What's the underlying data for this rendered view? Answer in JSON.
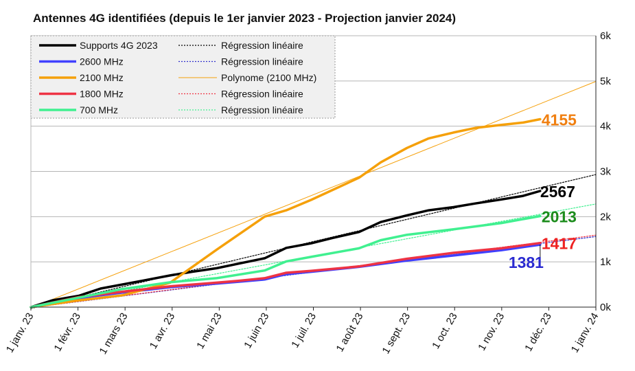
{
  "chart_data": {
    "type": "line",
    "title": "Antennes 4G identifiées (depuis le 1er janvier 2023 - Projection janvier 2024)",
    "x_tick_labels": [
      "1 janv. 23",
      "1 févr. 23",
      "1 mars 23",
      "1 avr. 23",
      "1 mai 23",
      "1 juin 23",
      "1 juil. 23",
      "1 août 23",
      "1 sept. 23",
      "1 oct. 23",
      "1 nov. 23",
      "1 déc. 23",
      "1 janv. 24"
    ],
    "y_tick_labels": [
      "0k",
      "1k",
      "2k",
      "3k",
      "4k",
      "5k",
      "6k"
    ],
    "xlim": [
      "2023-01-01",
      "2024-01-01"
    ],
    "ylim": [
      0,
      6000
    ],
    "y_axis_side": "right",
    "grid": "horizontal",
    "legend_position": "top-left",
    "series": [
      {
        "name": "Supports 4G 2023",
        "color": "#000000",
        "style": "solid",
        "x": [
          "2023-01-01",
          "2023-01-15",
          "2023-02-01",
          "2023-02-15",
          "2023-03-01",
          "2023-03-15",
          "2023-04-01",
          "2023-04-15",
          "2023-05-01",
          "2023-05-15",
          "2023-06-01",
          "2023-06-15",
          "2023-07-01",
          "2023-07-15",
          "2023-08-01",
          "2023-08-15",
          "2023-09-01",
          "2023-09-15",
          "2023-10-01",
          "2023-10-15",
          "2023-11-01",
          "2023-11-15",
          "2023-11-26"
        ],
        "values": [
          0,
          150,
          250,
          410,
          500,
          590,
          700,
          780,
          860,
          960,
          1080,
          1310,
          1410,
          1530,
          1660,
          1880,
          2030,
          2140,
          2210,
          2290,
          2380,
          2460,
          2567
        ],
        "end_label": "2567",
        "end_label_color": "#000000"
      },
      {
        "name": "2600 MHz",
        "color": "#4040ff",
        "style": "solid",
        "x": [
          "2023-01-01",
          "2023-02-01",
          "2023-03-01",
          "2023-04-01",
          "2023-05-01",
          "2023-05-15",
          "2023-06-01",
          "2023-06-15",
          "2023-07-01",
          "2023-08-01",
          "2023-09-01",
          "2023-10-01",
          "2023-11-01",
          "2023-11-26"
        ],
        "values": [
          0,
          200,
          320,
          440,
          520,
          560,
          610,
          730,
          780,
          890,
          1030,
          1140,
          1260,
          1381
        ],
        "end_label": "1381",
        "end_label_color": "#2a2ad0"
      },
      {
        "name": "2100 MHz",
        "color": "#f5a00a",
        "style": "solid",
        "x": [
          "2023-01-01",
          "2023-02-01",
          "2023-03-01",
          "2023-04-01",
          "2023-05-01",
          "2023-06-01",
          "2023-06-15",
          "2023-07-01",
          "2023-08-01",
          "2023-08-15",
          "2023-09-01",
          "2023-09-15",
          "2023-10-01",
          "2023-10-15",
          "2023-11-01",
          "2023-11-15",
          "2023-11-26"
        ],
        "values": [
          0,
          150,
          260,
          540,
          1270,
          2000,
          2140,
          2370,
          2860,
          3200,
          3520,
          3730,
          3860,
          3960,
          4030,
          4080,
          4155
        ],
        "end_label": "4155",
        "end_label_color": "#f07f10"
      },
      {
        "name": "1800 MHz",
        "color": "#ee3344",
        "style": "solid",
        "x": [
          "2023-01-01",
          "2023-02-01",
          "2023-03-01",
          "2023-04-01",
          "2023-05-01",
          "2023-05-15",
          "2023-06-01",
          "2023-06-15",
          "2023-07-01",
          "2023-08-01",
          "2023-09-01",
          "2023-10-01",
          "2023-11-01",
          "2023-11-26"
        ],
        "values": [
          0,
          220,
          340,
          460,
          540,
          580,
          640,
          760,
          800,
          900,
          1070,
          1200,
          1300,
          1417
        ],
        "end_label": "1417",
        "end_label_color": "#ee2222"
      },
      {
        "name": "700 MHz",
        "color": "#40f090",
        "style": "solid",
        "x": [
          "2023-01-01",
          "2023-02-01",
          "2023-03-01",
          "2023-04-01",
          "2023-05-01",
          "2023-06-01",
          "2023-06-15",
          "2023-07-01",
          "2023-08-01",
          "2023-08-15",
          "2023-09-01",
          "2023-10-01",
          "2023-11-01",
          "2023-11-26"
        ],
        "values": [
          0,
          210,
          400,
          550,
          640,
          810,
          1010,
          1110,
          1300,
          1480,
          1600,
          1720,
          1860,
          2013
        ],
        "end_label": "2013",
        "end_label_color": "#1c8c1c"
      },
      {
        "name": "Régression linéaire",
        "color": "#000000",
        "style": "dotted",
        "x": [
          "2023-01-01",
          "2024-01-01"
        ],
        "values": [
          -30,
          2930
        ]
      },
      {
        "name": "Régression linéaire",
        "color": "#3030cc",
        "style": "dotted",
        "x": [
          "2023-01-01",
          "2024-01-01"
        ],
        "values": [
          -10,
          1560
        ]
      },
      {
        "name": "Polynome (2100 MHz)",
        "color": "#f5a00a",
        "style": "thin",
        "x": [
          "2023-01-01",
          "2024-01-01"
        ],
        "values": [
          -20,
          4990
        ]
      },
      {
        "name": "Régression linéaire",
        "color": "#ee3344",
        "style": "dotted",
        "x": [
          "2023-01-01",
          "2024-01-01"
        ],
        "values": [
          -10,
          1590
        ]
      },
      {
        "name": "Régression linéaire",
        "color": "#40f090",
        "style": "dotted",
        "x": [
          "2023-01-01",
          "2024-01-01"
        ],
        "values": [
          -20,
          2280
        ]
      }
    ]
  }
}
